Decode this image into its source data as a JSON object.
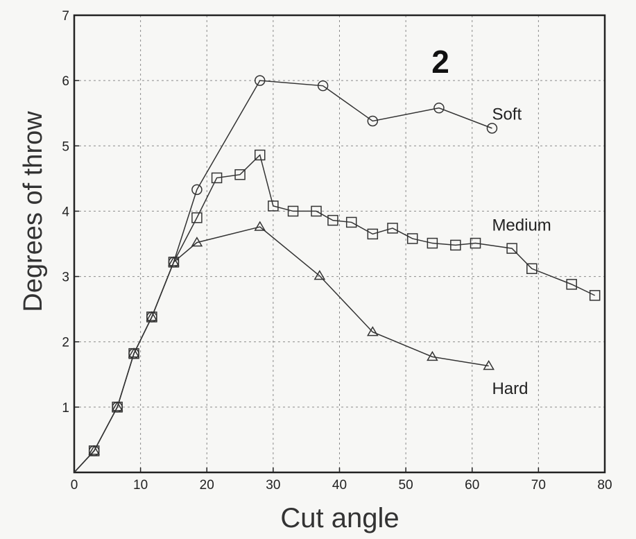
{
  "chart_data": {
    "type": "line",
    "title": "",
    "panel_label": "2",
    "xlabel": "Cut angle",
    "ylabel": "Degrees of throw",
    "xlim": [
      0,
      80
    ],
    "ylim": [
      0,
      7
    ],
    "x_ticks": [
      0,
      10,
      20,
      30,
      40,
      50,
      60,
      70,
      80
    ],
    "y_ticks": [
      1,
      2,
      3,
      4,
      5,
      6,
      7
    ],
    "grid": true,
    "series": [
      {
        "name": "Soft",
        "marker": "circle",
        "x": [
          0,
          3.0,
          6.5,
          9.0,
          11.7,
          15.0,
          18.5,
          28.0,
          37.5,
          45.0,
          55.0,
          63.0
        ],
        "y": [
          0,
          0.33,
          1.0,
          1.82,
          2.38,
          3.22,
          4.33,
          6.0,
          5.92,
          5.38,
          5.58,
          5.27
        ]
      },
      {
        "name": "Medium",
        "marker": "square",
        "x": [
          0,
          3.0,
          6.5,
          9.0,
          11.7,
          15.0,
          18.5,
          21.5,
          25.0,
          28.0,
          30.0,
          33.0,
          36.5,
          39.0,
          41.8,
          45.0,
          48.0,
          51.0,
          54.0,
          57.5,
          60.5,
          66.0,
          69.0,
          75.0,
          78.5
        ],
        "y": [
          0,
          0.33,
          1.0,
          1.82,
          2.38,
          3.22,
          3.9,
          4.51,
          4.56,
          4.86,
          4.08,
          4.0,
          4.0,
          3.86,
          3.83,
          3.65,
          3.74,
          3.58,
          3.51,
          3.48,
          3.51,
          3.43,
          3.12,
          2.88,
          2.71
        ]
      },
      {
        "name": "Hard",
        "marker": "triangle",
        "x": [
          0,
          3.0,
          6.5,
          9.0,
          11.7,
          15.0,
          18.5,
          28.0,
          37.0,
          45.0,
          54.0,
          62.5
        ],
        "y": [
          0,
          0.33,
          1.0,
          1.82,
          2.38,
          3.22,
          3.52,
          3.76,
          3.01,
          2.15,
          1.77,
          1.63
        ]
      }
    ],
    "series_label_positions": {
      "Soft": {
        "x": 63,
        "y": 5.4
      },
      "Medium": {
        "x": 63,
        "y": 3.7
      },
      "Hard": {
        "x": 63,
        "y": 1.2
      }
    }
  }
}
